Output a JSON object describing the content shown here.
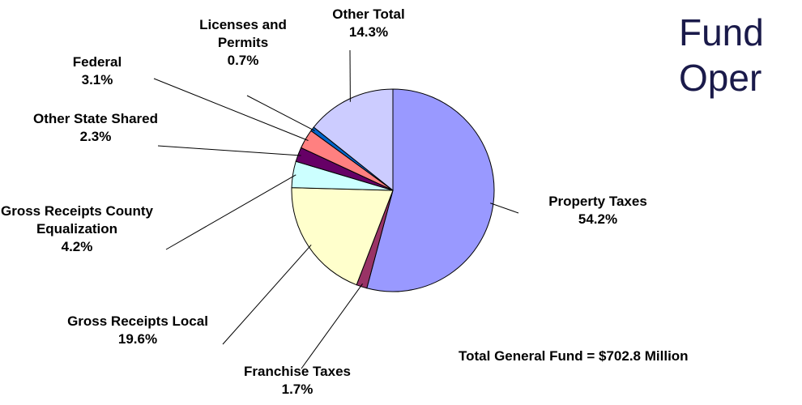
{
  "chart_data": {
    "type": "pie",
    "title": "Fund Oper",
    "annotation": "Total General Fund = $702.8 Million",
    "categories": [
      "Property Taxes",
      "Franchise Taxes",
      "Gross Receipts Local",
      "Gross Receipts County Equalization",
      "Other State Shared",
      "Federal",
      "Licenses and Permits",
      "Other Total"
    ],
    "values": [
      54.2,
      1.7,
      19.6,
      4.2,
      2.3,
      3.1,
      0.7,
      14.3
    ],
    "value_labels": [
      "54.2%",
      "1.7%",
      "19.6%",
      "4.2%",
      "2.3%",
      "3.1%",
      "0.7%",
      "14.3%"
    ],
    "colors": [
      "#9999ff",
      "#993366",
      "#ffffcc",
      "#ccffff",
      "#660066",
      "#ff8080",
      "#0066cc",
      "#ccccff"
    ]
  }
}
